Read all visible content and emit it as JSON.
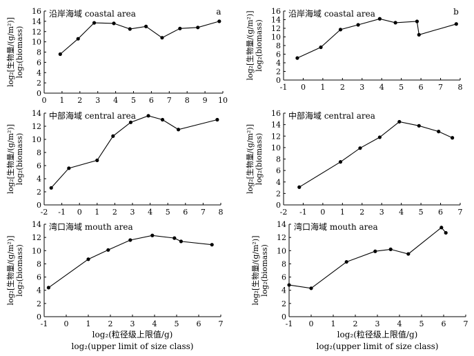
{
  "chart_data": [
    {
      "type": "line",
      "title": "沿岸海域 coastal area",
      "tag": "a",
      "ylabel": [
        "log₂[生物量/(g/m²)]",
        "log₂(biomass)"
      ],
      "xlabel": "",
      "xlim": [
        0,
        10
      ],
      "ylim": [
        0,
        16
      ],
      "xticks": [
        0,
        1,
        2,
        3,
        4,
        5,
        6,
        7,
        8,
        9,
        10
      ],
      "yticks": [
        0,
        2,
        4,
        6,
        8,
        10,
        12,
        14,
        16
      ],
      "x": [
        0.9,
        1.9,
        2.8,
        3.9,
        4.8,
        5.7,
        6.6,
        7.6,
        8.6,
        9.8
      ],
      "y": [
        7.6,
        10.6,
        13.7,
        13.6,
        12.5,
        13.0,
        10.8,
        12.6,
        12.8,
        14.0
      ]
    },
    {
      "type": "line",
      "title": "沿岸海域 coastal area",
      "tag": "b",
      "ylabel": [
        "log₂[生物量/(g/m²)]",
        "log₂(biomass)"
      ],
      "xlabel": "",
      "xlim": [
        -1,
        8
      ],
      "ylim": [
        0,
        16
      ],
      "xticks": [
        -1,
        0,
        1,
        2,
        3,
        4,
        5,
        6,
        7,
        8
      ],
      "yticks": [
        0,
        2,
        4,
        6,
        8,
        10,
        12,
        14,
        16
      ],
      "x": [
        -0.3,
        0.9,
        1.9,
        2.8,
        3.9,
        4.7,
        5.8,
        5.9,
        7.8
      ],
      "y": [
        5.1,
        7.6,
        11.7,
        12.8,
        14.2,
        13.3,
        13.6,
        10.5,
        13.0
      ]
    },
    {
      "type": "line",
      "title": "中部海域 central area",
      "tag": "",
      "ylabel": [
        "log₂[生物量/(g/m²)]",
        "log₂(biomass)"
      ],
      "xlabel": "",
      "xlim": [
        -2,
        8
      ],
      "ylim": [
        0,
        14
      ],
      "xticks": [
        -2,
        -1,
        0,
        1,
        2,
        3,
        4,
        5,
        6,
        7,
        8
      ],
      "yticks": [
        0,
        2,
        4,
        6,
        8,
        10,
        12,
        14
      ],
      "x": [
        -1.6,
        -0.6,
        1.0,
        1.9,
        2.9,
        3.9,
        4.7,
        5.6,
        7.8
      ],
      "y": [
        2.6,
        5.6,
        6.8,
        10.5,
        12.6,
        13.6,
        13.0,
        11.5,
        13.0
      ]
    },
    {
      "type": "line",
      "title": "中部海域 central area",
      "tag": "",
      "ylabel": [
        "log₂[生物量/(g/m²)]",
        "log₂(biomass)"
      ],
      "xlabel": "",
      "xlim": [
        -2,
        7
      ],
      "ylim": [
        0,
        16
      ],
      "xticks": [
        -2,
        -1,
        0,
        1,
        2,
        3,
        4,
        5,
        6,
        7
      ],
      "yticks": [
        0,
        2,
        4,
        6,
        8,
        10,
        12,
        14,
        16
      ],
      "x": [
        -1.2,
        0.9,
        1.9,
        2.9,
        3.9,
        4.9,
        5.9,
        6.6
      ],
      "y": [
        3.1,
        7.5,
        9.9,
        11.8,
        14.5,
        13.8,
        12.8,
        11.7
      ]
    },
    {
      "type": "line",
      "title": "湾口海域 mouth area",
      "tag": "",
      "ylabel": [
        "log₂[生物量/(g/m²)]",
        "log₂(biomass)"
      ],
      "xlabel": [
        "log₂(粒径级上限值/g)",
        "log₂(upper limit of size class)"
      ],
      "xlim": [
        -1,
        7
      ],
      "ylim": [
        0,
        14
      ],
      "xticks": [
        -1,
        0,
        1,
        2,
        3,
        4,
        5,
        6,
        7
      ],
      "yticks": [
        0,
        2,
        4,
        6,
        8,
        10,
        12,
        14
      ],
      "x": [
        -0.8,
        1.0,
        1.9,
        2.9,
        3.9,
        4.9,
        5.2,
        6.6
      ],
      "y": [
        4.4,
        8.7,
        10.1,
        11.6,
        12.3,
        11.9,
        11.4,
        10.9
      ]
    },
    {
      "type": "line",
      "title": "湾口海域 mouth area",
      "tag": "",
      "ylabel": [
        "log₂[生物量/(g/m²)]",
        "log₂(biomass)"
      ],
      "xlabel": [
        "log₂(粒径级上限值/g)",
        "log₂(upper limit of size class)"
      ],
      "xlim": [
        -1,
        7
      ],
      "ylim": [
        0,
        14
      ],
      "xticks": [
        -1,
        0,
        1,
        2,
        3,
        4,
        5,
        6,
        7
      ],
      "yticks": [
        0,
        2,
        4,
        6,
        8,
        10,
        12,
        14
      ],
      "x": [
        -1.0,
        0.0,
        1.6,
        2.9,
        3.6,
        4.4,
        5.9,
        6.1
      ],
      "y": [
        4.8,
        4.3,
        8.3,
        9.9,
        10.2,
        9.5,
        13.5,
        12.7
      ]
    }
  ]
}
